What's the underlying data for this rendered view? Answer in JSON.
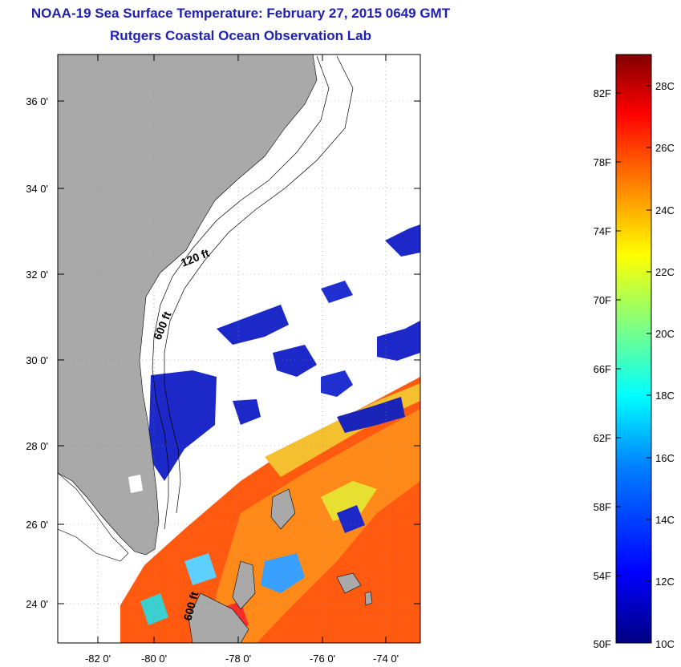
{
  "header": {
    "title": "NOAA-19 Sea Surface Temperature:  February 27, 2015 0649 GMT",
    "subtitle": "Rutgers Coastal Ocean Observation Lab"
  },
  "map": {
    "lat_labels": [
      "36 0'",
      "34 0'",
      "32 0'",
      "30 0'",
      "28 0'",
      "26 0'",
      "24 0'"
    ],
    "lon_labels": [
      "-82 0'",
      "-80 0'",
      "-78 0'",
      "-76 0'",
      "-74 0'"
    ],
    "contour_labels": [
      "120 ft",
      "600 ft",
      "600 ft"
    ],
    "colors": {
      "land": "#a9a9a9",
      "no_data": "#ffffff"
    }
  },
  "colorbar": {
    "fahrenheit_labels": [
      "82F",
      "78F",
      "74F",
      "70F",
      "66F",
      "62F",
      "58F",
      "54F",
      "50F"
    ],
    "celsius_labels": [
      "28C",
      "26C",
      "24C",
      "22C",
      "20C",
      "18C",
      "16C",
      "14C",
      "12C",
      "10C"
    ],
    "gradient": [
      "#000080",
      "#0000ff",
      "#0080ff",
      "#00ffff",
      "#80ff80",
      "#ffff00",
      "#ff8000",
      "#ff0000",
      "#800000"
    ]
  }
}
